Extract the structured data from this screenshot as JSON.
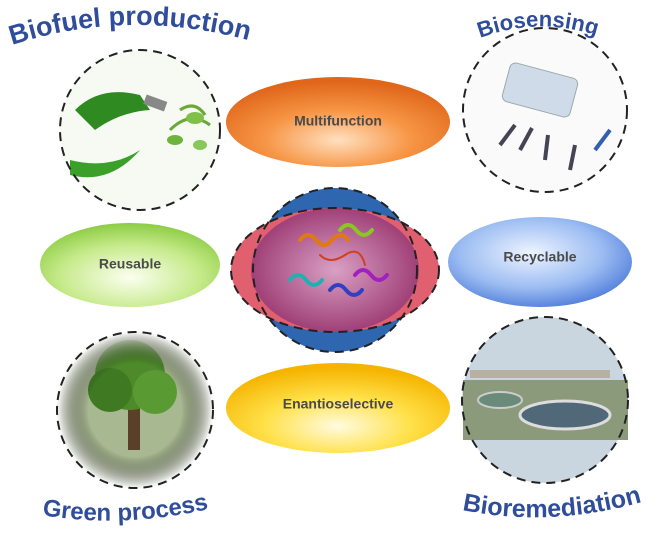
{
  "applications": [
    "Biofuel production",
    "Biosensing",
    "Green process",
    "Bioremediation"
  ],
  "properties": [
    "Multifunction",
    "Reusable",
    "Recyclable",
    "Enantioselective"
  ]
}
